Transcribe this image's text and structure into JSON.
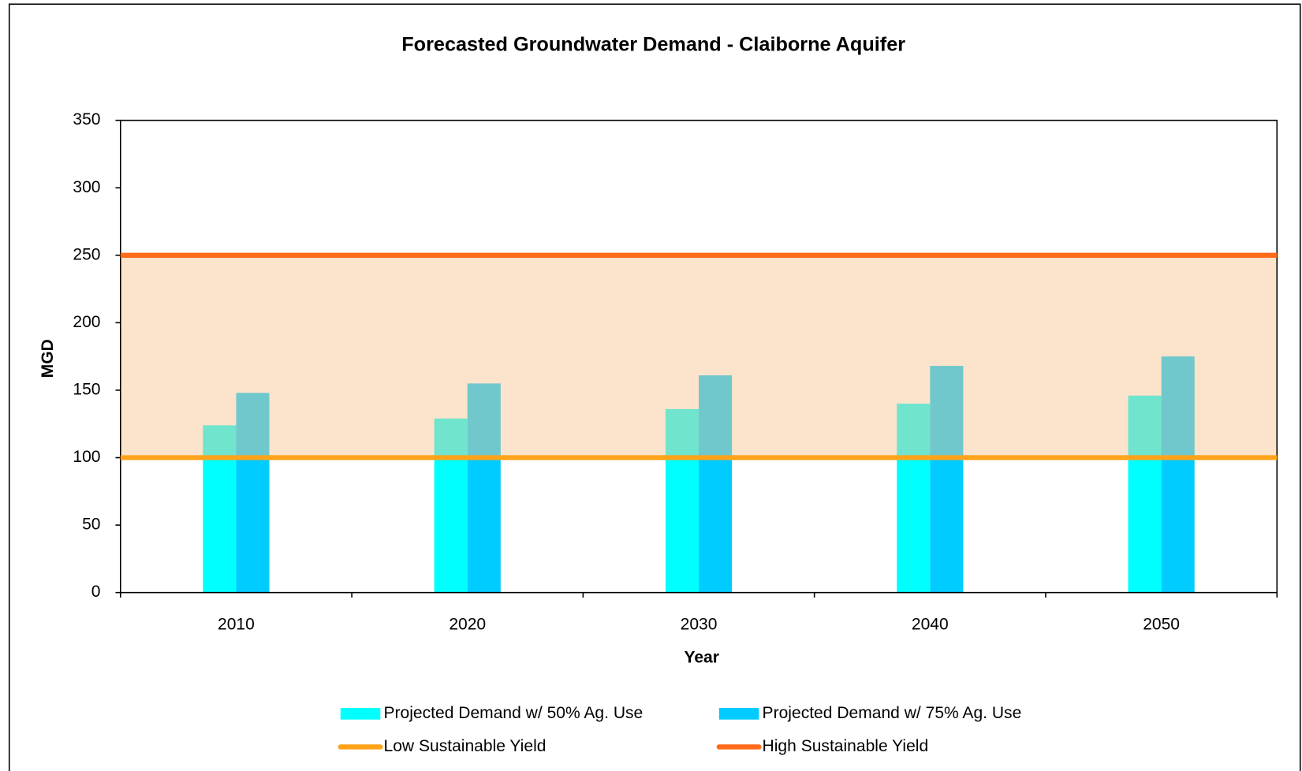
{
  "chart_data": {
    "type": "bar",
    "title": "Forecasted Groundwater Demand - Claiborne Aquifer",
    "x_label": "Year",
    "y_label": "MGD",
    "categories": [
      "2010",
      "2020",
      "2030",
      "2040",
      "2050"
    ],
    "series": [
      {
        "name": "Projected Demand w/ 50% Ag. Use",
        "color": "#00ffff",
        "values": [
          124,
          129,
          136,
          140,
          146
        ]
      },
      {
        "name": "Projected Demand w/ 75% Ag. Use",
        "color": "#00ccff",
        "values": [
          148,
          155,
          161,
          168,
          175
        ]
      }
    ],
    "reference_lines": [
      {
        "name": "Low Sustainable Yield",
        "color": "#ffa31a",
        "value": 100
      },
      {
        "name": "High Sustainable Yield",
        "color": "#ff6b1a",
        "value": 250
      }
    ],
    "band_color": "#f9c38f",
    "ylim": [
      0,
      350
    ],
    "yticks": [
      0,
      50,
      100,
      150,
      200,
      250,
      300,
      350
    ]
  }
}
